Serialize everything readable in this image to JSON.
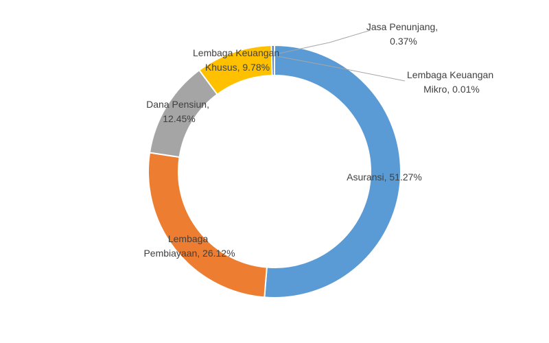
{
  "chart_data": {
    "type": "pie",
    "variant": "doughnut",
    "title": "",
    "start_angle_deg": 0,
    "direction": "clockwise",
    "slices": [
      {
        "name": "Asuransi",
        "value": 51.27,
        "label_value": "51.27%",
        "color": "#5b9bd5"
      },
      {
        "name": "Lembaga Pembiayaan",
        "value": 26.12,
        "label_value": "26.12%",
        "color": "#ed7d31"
      },
      {
        "name": "Dana Pensiun",
        "value": 12.45,
        "label_value": "12.45%",
        "color": "#a5a5a5"
      },
      {
        "name": "Lembaga Keuangan Khusus",
        "value": 9.78,
        "label_value": "9.78%",
        "color": "#ffc000"
      },
      {
        "name": "Jasa Penunjang",
        "value": 0.37,
        "label_value": "0.37%",
        "color": "#4472c4"
      },
      {
        "name": "Lembaga Keuangan Mikro",
        "value": 0.01,
        "label_value": "0.01%",
        "color": "#255e91"
      }
    ],
    "labels": [
      {
        "lines": [
          "Asuransi, 51.27%"
        ]
      },
      {
        "lines": [
          "Lembaga",
          "Pembiayaan, 26.12%"
        ]
      },
      {
        "lines": [
          "Dana Pensiun,",
          "12.45%"
        ]
      },
      {
        "lines": [
          "Lembaga Keuangan",
          "Khusus, 9.78%"
        ]
      },
      {
        "lines": [
          "Jasa Penunjang,",
          "0.37%"
        ]
      },
      {
        "lines": [
          "Lembaga Keuangan",
          "Mikro, 0.01%"
        ]
      }
    ],
    "legend": "none"
  }
}
